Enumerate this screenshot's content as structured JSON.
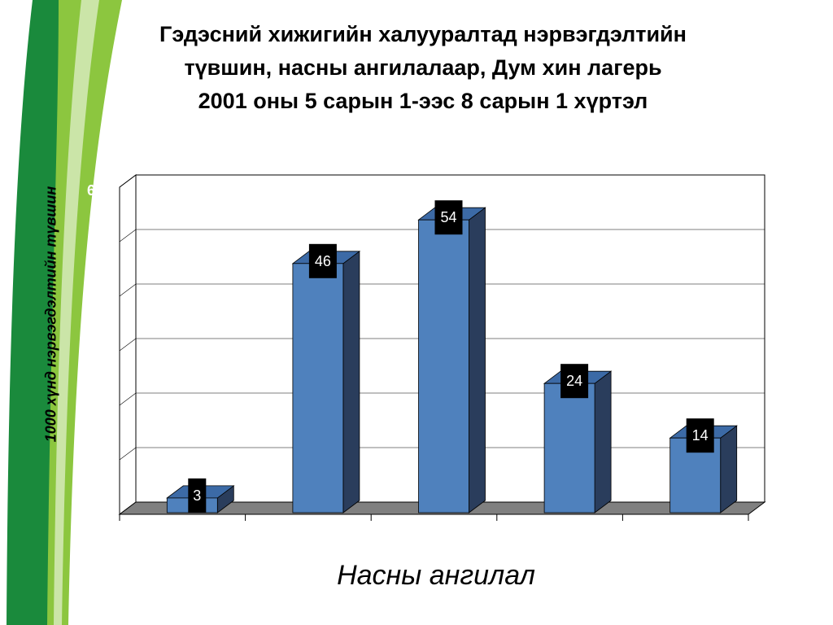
{
  "title_lines": [
    "Гэдэсний хижигийн халууралтад нэрвэгдэлтийн",
    "түвшин, насны ангилалаар, Дум хин лагерь",
    "2001 оны 5 сарын 1-ээс 8  сарын 1 хүртэл"
  ],
  "colors": {
    "bar_front": "#4f81bd",
    "bar_side": "#2a3d5c",
    "bar_top": "#3c6aa6",
    "label_box": "#000000",
    "deco_green_dark": "#1a8a3c",
    "deco_green_light": "#8cc63f"
  },
  "chart_data": {
    "type": "bar",
    "title": "Гэдэсний хижигийн халууралтад нэрвэгдэлтийн түвшин, насны ангилалаар, Дум хин лагерь 2001 оны 5 сарын 1-ээс 8  сарын 1 хүртэл",
    "xlabel": "Насны ангилал",
    "ylabel": "1000 хүнд нэрвэгдэлтийн түвшин",
    "categories": [
      "",
      "",
      "",
      "",
      ""
    ],
    "values": [
      3,
      46,
      54,
      24,
      14
    ],
    "ylim": [
      0,
      60
    ],
    "y_tick_labels_visible": [
      "60"
    ],
    "grid": true,
    "style": "3d-column"
  }
}
